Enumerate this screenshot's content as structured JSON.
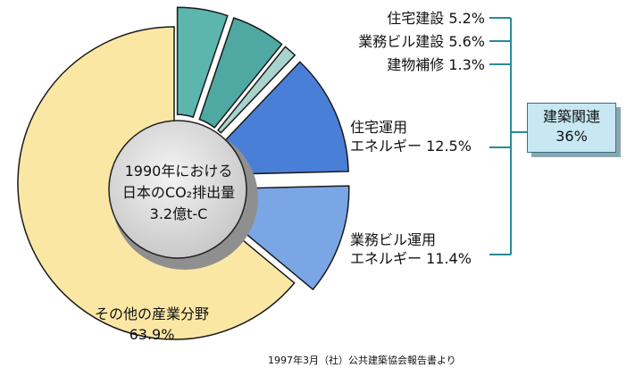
{
  "chart_data": {
    "type": "pie",
    "title": "",
    "center_label": [
      "1990年における",
      "日本のCO₂排出量",
      "3.2億t-C"
    ],
    "slices": [
      {
        "label": "住宅建設",
        "value": 5.2,
        "display": "住宅建設 5.2%",
        "color": "#5cb6ae"
      },
      {
        "label": "業務ビル建設",
        "value": 5.6,
        "display": "業務ビル建設 5.6%",
        "color": "#4fa9a2"
      },
      {
        "label": "建物補修",
        "value": 1.3,
        "display": "建物補修 1.3%",
        "color": "#a9d4cd"
      },
      {
        "label": "住宅運用エネルギー",
        "value": 12.5,
        "display_lines": [
          "住宅運用",
          "エネルギー 12.5%"
        ],
        "color": "#4a7fd8"
      },
      {
        "label": "業務ビル運用エネルギー",
        "value": 11.4,
        "display_lines": [
          "業務ビル運用",
          "エネルギー 11.4%"
        ],
        "color": "#7aa6e6"
      },
      {
        "label": "その他の産業分野",
        "value": 63.9,
        "display_lines": [
          "その他の産業分野",
          "63.9%"
        ],
        "color": "#fbe7a4"
      }
    ],
    "group": {
      "label_lines": [
        "建築関連",
        "36%"
      ]
    },
    "source": "1997年3月（社）公共建築協会報告書より"
  }
}
